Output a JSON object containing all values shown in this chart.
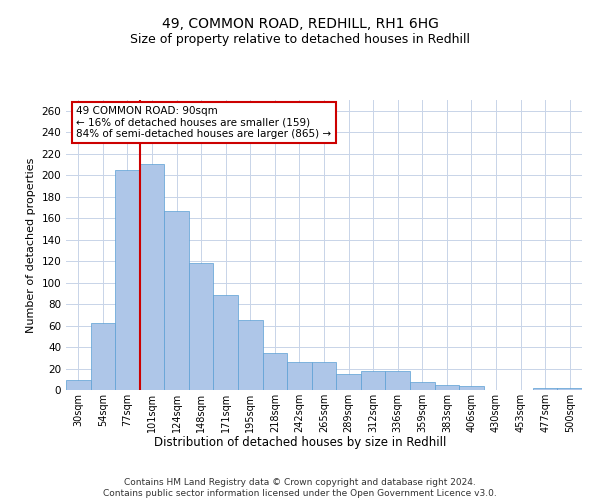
{
  "title": "49, COMMON ROAD, REDHILL, RH1 6HG",
  "subtitle": "Size of property relative to detached houses in Redhill",
  "xlabel": "Distribution of detached houses by size in Redhill",
  "ylabel": "Number of detached properties",
  "categories": [
    "30sqm",
    "54sqm",
    "77sqm",
    "101sqm",
    "124sqm",
    "148sqm",
    "171sqm",
    "195sqm",
    "218sqm",
    "242sqm",
    "265sqm",
    "289sqm",
    "312sqm",
    "336sqm",
    "359sqm",
    "383sqm",
    "406sqm",
    "430sqm",
    "453sqm",
    "477sqm",
    "500sqm"
  ],
  "values": [
    9,
    62,
    205,
    210,
    167,
    118,
    88,
    65,
    34,
    26,
    26,
    15,
    18,
    18,
    7,
    5,
    4,
    0,
    0,
    2,
    2
  ],
  "bar_color": "#aec6e8",
  "bar_edge_color": "#5a9fd4",
  "background_color": "#ffffff",
  "grid_color": "#c8d4e8",
  "vline_color": "#cc0000",
  "annotation_text": "49 COMMON ROAD: 90sqm\n← 16% of detached houses are smaller (159)\n84% of semi-detached houses are larger (865) →",
  "annotation_box_color": "#ffffff",
  "annotation_box_edge_color": "#cc0000",
  "ylim": [
    0,
    270
  ],
  "yticks": [
    0,
    20,
    40,
    60,
    80,
    100,
    120,
    140,
    160,
    180,
    200,
    220,
    240,
    260
  ],
  "footer": "Contains HM Land Registry data © Crown copyright and database right 2024.\nContains public sector information licensed under the Open Government Licence v3.0.",
  "title_fontsize": 10,
  "subtitle_fontsize": 9,
  "footer_fontsize": 6.5
}
